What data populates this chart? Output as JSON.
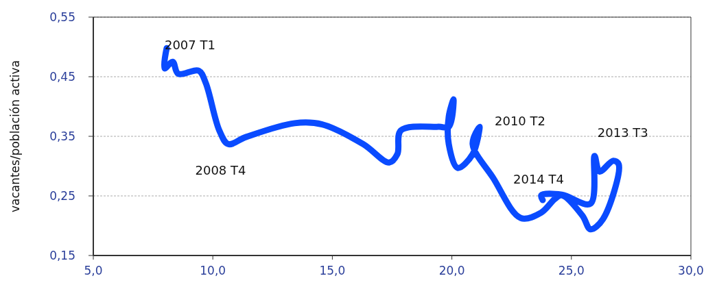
{
  "chart_data": {
    "type": "line",
    "ylabel": "vacantes/población activa",
    "xlim": [
      5,
      30
    ],
    "xticks": [
      {
        "value": 5,
        "label": "5,0"
      },
      {
        "value": 10,
        "label": "10,0"
      },
      {
        "value": 15,
        "label": "15,0"
      },
      {
        "value": 20,
        "label": "20,0"
      },
      {
        "value": 25,
        "label": "25,0"
      },
      {
        "value": 30,
        "label": "30,0"
      }
    ],
    "ylim": [
      0.15,
      0.55
    ],
    "yticks": [
      {
        "value": 0.15,
        "label": "0,15"
      },
      {
        "value": 0.25,
        "label": "0,25"
      },
      {
        "value": 0.35,
        "label": "0,35"
      },
      {
        "value": 0.45,
        "label": "0,45"
      },
      {
        "value": 0.55,
        "label": "0,55"
      }
    ],
    "grid": "y",
    "marker": "none",
    "line_style": "solid",
    "series": [
      {
        "color": "#0a4bff",
        "x": [
          8.07,
          7.98,
          8.32,
          8.55,
          9.41,
          9.7,
          10.27,
          10.64,
          11.4,
          13.42,
          14.57,
          16.29,
          17.38,
          17.72,
          17.87,
          19.44,
          19.87,
          20.07,
          19.87,
          19.87,
          20.24,
          20.87,
          21.16,
          20.87,
          21.73,
          22.88,
          23.74,
          24.31,
          24.6,
          25.46,
          25.8,
          26.32,
          26.98,
          26.75,
          26.18,
          25.97,
          25.8,
          24.6,
          23.74,
          23.8
        ],
        "values": [
          0.498,
          0.464,
          0.475,
          0.455,
          0.46,
          0.44,
          0.36,
          0.337,
          0.349,
          0.372,
          0.37,
          0.337,
          0.306,
          0.32,
          0.36,
          0.366,
          0.366,
          0.412,
          0.383,
          0.337,
          0.297,
          0.32,
          0.366,
          0.337,
          0.28,
          0.213,
          0.222,
          0.245,
          0.251,
          0.217,
          0.194,
          0.211,
          0.303,
          0.309,
          0.291,
          0.317,
          0.237,
          0.252,
          0.251,
          0.243
        ]
      }
    ],
    "annotations": [
      {
        "text": "2007 T1",
        "x": 8.07,
        "y": 0.498
      },
      {
        "text": "2008 T4",
        "x": 10.64,
        "y": 0.337
      },
      {
        "text": "2010 T2",
        "x": 21.16,
        "y": 0.366
      },
      {
        "text": "2013 T3",
        "x": 26.98,
        "y": 0.303
      },
      {
        "text": "2014 T4",
        "x": 23.8,
        "y": 0.243
      }
    ]
  }
}
